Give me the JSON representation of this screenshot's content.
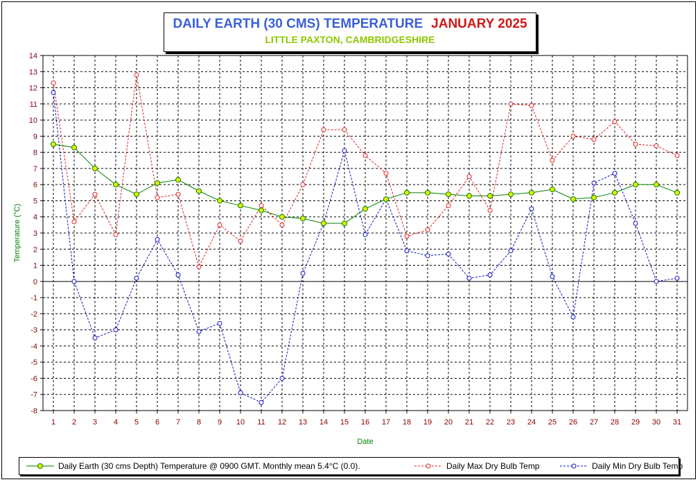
{
  "header": {
    "title": "DAILY EARTH (30 CMS) TEMPERATURE",
    "month": "JANUARY 2025",
    "subtitle": "LITTLE PAXTON, CAMBRIDGESHIRE"
  },
  "colors": {
    "title": "#3a5fd9",
    "month": "#d01818",
    "subtitle": "#8cc800",
    "earth_line": "#008000",
    "earth_marker": "#e6f000",
    "max_line": "#e02020",
    "min_line": "#1010c0",
    "tick_labels": "#8b0000",
    "axis_titles": "#008000"
  },
  "chart_data": {
    "type": "line",
    "xlabel": "Date",
    "ylabel": "Temperature (°C)",
    "x": [
      1,
      2,
      3,
      4,
      5,
      6,
      7,
      8,
      9,
      10,
      11,
      12,
      13,
      14,
      15,
      16,
      17,
      18,
      19,
      20,
      21,
      22,
      23,
      24,
      25,
      26,
      27,
      28,
      29,
      30,
      31
    ],
    "xlim": [
      1,
      31
    ],
    "ylim": [
      -8,
      14
    ],
    "yticks": [
      14,
      13,
      12,
      11,
      10,
      9,
      8,
      7,
      6,
      5,
      4,
      3,
      2,
      1,
      0,
      -1,
      -2,
      -3,
      -4,
      -5,
      -6,
      -7,
      -8
    ],
    "grid": true,
    "legend_position": "bottom",
    "series": [
      {
        "name": "Daily Earth (30 cms Depth) Temperature @ 0900 GMT. Monthly mean 5.4°C (0.0).",
        "style": "solid",
        "values": [
          8.5,
          8.3,
          7.0,
          6.0,
          5.4,
          6.1,
          6.3,
          5.6,
          5.0,
          4.7,
          4.4,
          4.0,
          3.9,
          3.6,
          3.6,
          4.5,
          5.1,
          5.5,
          5.5,
          5.4,
          5.3,
          5.3,
          5.4,
          5.5,
          5.7,
          5.1,
          5.2,
          5.5,
          6.0,
          6.0,
          5.5
        ]
      },
      {
        "name": "Daily Max Dry Bulb Temp",
        "style": "dashed",
        "values": [
          12.3,
          3.7,
          5.4,
          2.9,
          12.8,
          5.2,
          5.4,
          0.9,
          3.5,
          2.5,
          4.7,
          3.5,
          6.0,
          9.4,
          9.4,
          7.8,
          6.7,
          2.8,
          3.2,
          4.7,
          6.5,
          4.4,
          11.0,
          10.9,
          7.5,
          9.0,
          8.8,
          9.9,
          8.5,
          8.4,
          7.8
        ]
      },
      {
        "name": "Daily Min Dry Bulb Temp",
        "style": "dashed",
        "values": [
          11.7,
          0.0,
          -3.5,
          -3.0,
          0.2,
          2.6,
          0.4,
          -3.1,
          -2.6,
          -6.9,
          -7.5,
          -6.0,
          0.5,
          3.6,
          8.1,
          2.9,
          5.1,
          1.9,
          1.6,
          1.7,
          0.2,
          0.4,
          1.9,
          4.5,
          0.3,
          -2.2,
          6.1,
          6.7,
          3.6,
          0.0,
          0.2
        ]
      }
    ]
  }
}
